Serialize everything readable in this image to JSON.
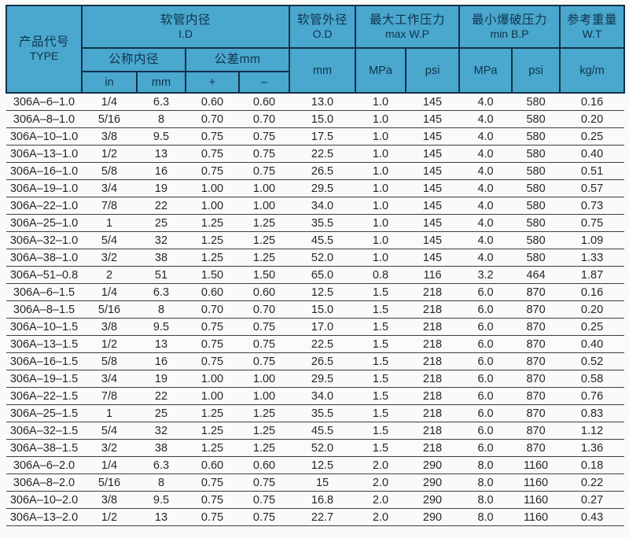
{
  "colors": {
    "header_bg": "#4aa7ce",
    "header_border": "#123148",
    "header_text": "#10344c",
    "body_text": "#262626",
    "row_line": "#3e3e3e",
    "page_bg": "#fafafa"
  },
  "header": {
    "product_code_zh": "产品代号",
    "product_code_en": "TYPE",
    "id_zh": "软管内径",
    "id_en": "I.D",
    "od_zh": "软管外径",
    "od_en": "O.D",
    "wp_zh": "最大工作压力",
    "wp_en": "max W.P",
    "bp_zh": "最小爆破压力",
    "bp_en": "min B.P",
    "wt_zh": "参考重量",
    "wt_en": "W.T",
    "nominal_id_zh": "公称内径",
    "tolerance_zh": "公差mm",
    "unit_in": "in",
    "unit_mm": "mm",
    "tol_plus": "+",
    "tol_minus": "–",
    "od_unit": "mm",
    "wp_mpa": "MPa",
    "wp_psi": "psi",
    "bp_mpa": "MPa",
    "bp_psi": "psi",
    "wt_unit": "kg/m"
  },
  "chart_data": {
    "type": "table",
    "title": "306A hose specification table",
    "columns": [
      "产品代号 TYPE",
      "公称内径 in",
      "公称内径 mm",
      "公差mm +",
      "公差mm –",
      "软管外径 O.D mm",
      "max W.P MPa",
      "max W.P psi",
      "min B.P MPa",
      "min B.P psi",
      "参考重量 W.T kg/m"
    ],
    "rows": [
      [
        "306A–6–1.0",
        "1/4",
        "6.3",
        "0.60",
        "0.60",
        "13.0",
        "1.0",
        "145",
        "4.0",
        "580",
        "0.16"
      ],
      [
        "306A–8–1.0",
        "5/16",
        "8",
        "0.70",
        "0.70",
        "15.0",
        "1.0",
        "145",
        "4.0",
        "580",
        "0.20"
      ],
      [
        "306A–10–1.0",
        "3/8",
        "9.5",
        "0.75",
        "0.75",
        "17.5",
        "1.0",
        "145",
        "4.0",
        "580",
        "0.25"
      ],
      [
        "306A–13–1.0",
        "1/2",
        "13",
        "0.75",
        "0.75",
        "22.5",
        "1.0",
        "145",
        "4.0",
        "580",
        "0.40"
      ],
      [
        "306A–16–1.0",
        "5/8",
        "16",
        "0.75",
        "0.75",
        "26.5",
        "1.0",
        "145",
        "4.0",
        "580",
        "0.51"
      ],
      [
        "306A–19–1.0",
        "3/4",
        "19",
        "1.00",
        "1.00",
        "29.5",
        "1.0",
        "145",
        "4.0",
        "580",
        "0.57"
      ],
      [
        "306A–22–1.0",
        "7/8",
        "22",
        "1.00",
        "1.00",
        "34.0",
        "1.0",
        "145",
        "4.0",
        "580",
        "0.73"
      ],
      [
        "306A–25–1.0",
        "1",
        "25",
        "1.25",
        "1.25",
        "35.5",
        "1.0",
        "145",
        "4.0",
        "580",
        "0.75"
      ],
      [
        "306A–32–1.0",
        "5/4",
        "32",
        "1.25",
        "1.25",
        "45.5",
        "1.0",
        "145",
        "4.0",
        "580",
        "1.09"
      ],
      [
        "306A–38–1.0",
        "3/2",
        "38",
        "1.25",
        "1.25",
        "52.0",
        "1.0",
        "145",
        "4.0",
        "580",
        "1.33"
      ],
      [
        "306A–51–0.8",
        "2",
        "51",
        "1.50",
        "1.50",
        "65.0",
        "0.8",
        "116",
        "3.2",
        "464",
        "1.87"
      ],
      [
        "306A–6–1.5",
        "1/4",
        "6.3",
        "0.60",
        "0.60",
        "12.5",
        "1.5",
        "218",
        "6.0",
        "870",
        "0.16"
      ],
      [
        "306A–8–1.5",
        "5/16",
        "8",
        "0.70",
        "0.70",
        "15.0",
        "1.5",
        "218",
        "6.0",
        "870",
        "0.20"
      ],
      [
        "306A–10–1.5",
        "3/8",
        "9.5",
        "0.75",
        "0.75",
        "17.0",
        "1.5",
        "218",
        "6.0",
        "870",
        "0.25"
      ],
      [
        "306A–13–1.5",
        "1/2",
        "13",
        "0.75",
        "0.75",
        "22.5",
        "1.5",
        "218",
        "6.0",
        "870",
        "0.40"
      ],
      [
        "306A–16–1.5",
        "5/8",
        "16",
        "0.75",
        "0.75",
        "26.5",
        "1.5",
        "218",
        "6.0",
        "870",
        "0.52"
      ],
      [
        "306A–19–1.5",
        "3/4",
        "19",
        "1.00",
        "1.00",
        "29.5",
        "1.5",
        "218",
        "6.0",
        "870",
        "0.58"
      ],
      [
        "306A–22–1.5",
        "7/8",
        "22",
        "1.00",
        "1.00",
        "34.0",
        "1.5",
        "218",
        "6.0",
        "870",
        "0.76"
      ],
      [
        "306A–25–1.5",
        "1",
        "25",
        "1.25",
        "1.25",
        "35.5",
        "1.5",
        "218",
        "6.0",
        "870",
        "0.83"
      ],
      [
        "306A–32–1.5",
        "5/4",
        "32",
        "1.25",
        "1.25",
        "45.5",
        "1.5",
        "218",
        "6.0",
        "870",
        "1.12"
      ],
      [
        "306A–38–1.5",
        "3/2",
        "38",
        "1.25",
        "1.25",
        "52.0",
        "1.5",
        "218",
        "6.0",
        "870",
        "1.36"
      ],
      [
        "306A–6–2.0",
        "1/4",
        "6.3",
        "0.60",
        "0.60",
        "12.5",
        "2.0",
        "290",
        "8.0",
        "1160",
        "0.18"
      ],
      [
        "306A–8–2.0",
        "5/16",
        "8",
        "0.75",
        "0.75",
        "15",
        "2.0",
        "290",
        "8.0",
        "1160",
        "0.22"
      ],
      [
        "306A–10–2.0",
        "3/8",
        "9.5",
        "0.75",
        "0.75",
        "16.8",
        "2.0",
        "290",
        "8.0",
        "1160",
        "0.27"
      ],
      [
        "306A–13–2.0",
        "1/2",
        "13",
        "0.75",
        "0.75",
        "22.7",
        "2.0",
        "290",
        "8.0",
        "1160",
        "0.43"
      ]
    ]
  }
}
